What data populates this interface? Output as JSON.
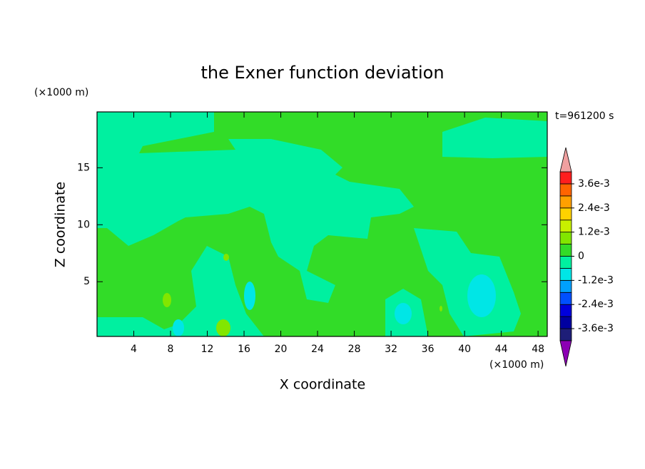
{
  "chart_data": {
    "type": "contour",
    "title": "the Exner function deviation",
    "time_label": "t=961200 s",
    "x_unit": "(×1000 m)",
    "y_unit": "(×1000 m)",
    "xlabel": "X coordinate",
    "ylabel": "Z coordinate",
    "xlim": [
      0,
      49
    ],
    "ylim": [
      0.2,
      19.9
    ],
    "xticks": [
      4,
      8,
      12,
      16,
      20,
      24,
      28,
      32,
      36,
      40,
      44,
      48
    ],
    "yticks": [
      5,
      10,
      15
    ],
    "levels": [
      -0.0042,
      -0.0036,
      -0.003,
      -0.0024,
      -0.0018,
      -0.0012,
      -0.0006,
      0,
      0.0006,
      0.0012,
      0.0018,
      0.0024,
      0.003,
      0.0036,
      0.0042
    ],
    "colors": [
      "#1e1e78",
      "#0000a0",
      "#0000dc",
      "#0050ff",
      "#00a0ff",
      "#00e6e6",
      "#00f0a0",
      "#32dc28",
      "#82e600",
      "#c8f000",
      "#ffd200",
      "#ffa000",
      "#ff6400",
      "#ff1e1e"
    ],
    "under_color": "#8c00b4",
    "over_color": "#f0a0a0",
    "colorbar_ticks": [
      {
        "value": 0.0036,
        "label": "3.6e-3"
      },
      {
        "value": 0.0024,
        "label": "2.4e-3"
      },
      {
        "value": 0.0012,
        "label": "1.2e-3"
      },
      0,
      {
        "value": -0.0012,
        "label": "-1.2e-3"
      },
      {
        "value": -0.0024,
        "label": "-2.4e-3"
      },
      {
        "value": -0.0036,
        "label": "-3.6e-3"
      }
    ]
  }
}
